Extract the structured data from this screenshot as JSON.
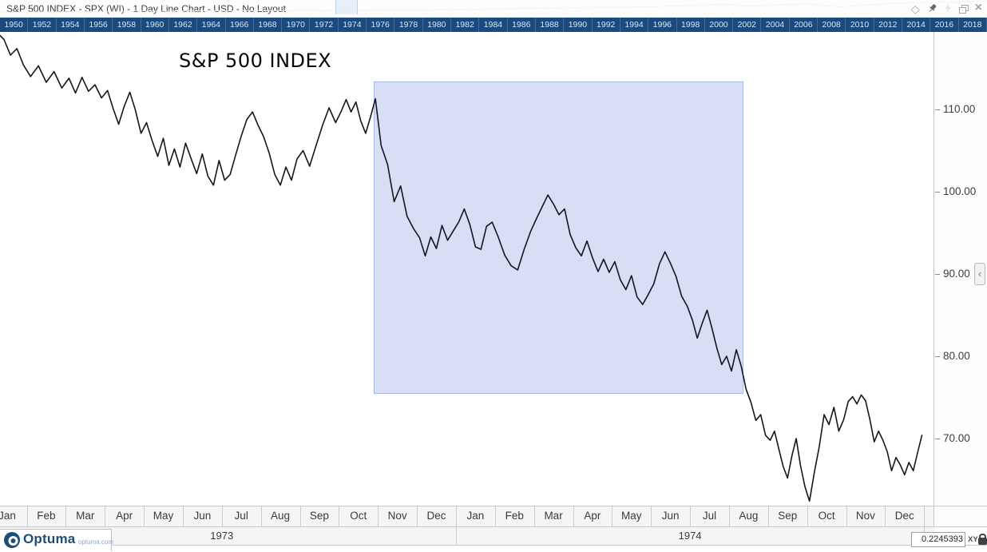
{
  "window": {
    "title": "S&P 500 INDEX - SPX (WI) - 1 Day Line Chart - USD - No Layout",
    "icons": [
      "diamond",
      "pin",
      "flash",
      "restore",
      "close"
    ]
  },
  "timeline": {
    "years": [
      "1950",
      "1952",
      "1954",
      "1956",
      "1958",
      "1960",
      "1962",
      "1964",
      "1966",
      "1968",
      "1970",
      "1972",
      "1974",
      "1976",
      "1978",
      "1980",
      "1982",
      "1984",
      "1986",
      "1988",
      "1990",
      "1992",
      "1994",
      "1996",
      "1998",
      "2000",
      "2002",
      "2004",
      "2006",
      "2008",
      "2010",
      "2012",
      "2014",
      "2016",
      "2018"
    ],
    "viewport": {
      "left_frac": 0.34,
      "width_frac": 0.0226
    },
    "sparkline": [
      [
        0.0,
        0.88
      ],
      [
        0.06,
        0.86
      ],
      [
        0.1,
        0.84
      ],
      [
        0.14,
        0.8
      ],
      [
        0.17,
        0.82
      ],
      [
        0.2,
        0.78
      ],
      [
        0.23,
        0.8
      ],
      [
        0.26,
        0.76
      ],
      [
        0.29,
        0.78
      ],
      [
        0.31,
        0.74
      ],
      [
        0.33,
        0.77
      ],
      [
        0.35,
        0.73
      ],
      [
        0.37,
        0.76
      ],
      [
        0.4,
        0.72
      ],
      [
        0.43,
        0.74
      ],
      [
        0.46,
        0.68
      ],
      [
        0.49,
        0.66
      ],
      [
        0.51,
        0.62
      ],
      [
        0.54,
        0.6
      ],
      [
        0.57,
        0.56
      ],
      [
        0.6,
        0.52
      ],
      [
        0.63,
        0.5
      ],
      [
        0.66,
        0.46
      ],
      [
        0.69,
        0.4
      ],
      [
        0.71,
        0.36
      ],
      [
        0.72,
        0.3
      ],
      [
        0.735,
        0.26
      ],
      [
        0.75,
        0.36
      ],
      [
        0.76,
        0.44
      ],
      [
        0.78,
        0.36
      ],
      [
        0.8,
        0.28
      ],
      [
        0.82,
        0.24
      ],
      [
        0.84,
        0.42
      ],
      [
        0.855,
        0.46
      ],
      [
        0.87,
        0.36
      ],
      [
        0.89,
        0.26
      ],
      [
        0.91,
        0.18
      ],
      [
        0.93,
        0.14
      ],
      [
        0.95,
        0.1
      ],
      [
        0.97,
        0.12
      ],
      [
        0.985,
        0.06
      ],
      [
        1.0,
        0.04
      ]
    ]
  },
  "chart": {
    "title": "S&P 500 INDEX"
  },
  "y_axis": {
    "tick_values": [
      110,
      100,
      90,
      80,
      70
    ]
  },
  "x_axis": {
    "months": [
      "Jan",
      "Feb",
      "Mar",
      "Apr",
      "May",
      "Jun",
      "Jul",
      "Aug",
      "Sep",
      "Oct",
      "Nov",
      "Dec"
    ],
    "years": [
      "1973",
      "1974"
    ]
  },
  "footer": {
    "brand": "Optuma",
    "brand_url": "optuma.com",
    "status_value": "0.2245393",
    "axis_mode": "XY"
  },
  "colors": {
    "timeline_bg": "#1b4a7e",
    "selection_fill": "#d7def5",
    "selection_border": "#a9b9e6",
    "price_line": "#16161e"
  },
  "chart_data": {
    "type": "line",
    "title": "S&P 500 INDEX",
    "symbol": "SPX (WI)",
    "timeframe": "1 Day",
    "currency": "USD",
    "x_range": [
      "Jan 1973",
      "Dec 1974"
    ],
    "y_visible_range": [
      61.5,
      120
    ],
    "y_ticks": [
      110,
      100,
      90,
      80,
      70
    ],
    "highlight_region": {
      "start": "Nov 1973",
      "end": "mid Aug 1974"
    },
    "series": [
      {
        "name": "S&P 500 INDEX",
        "monthly": [
          {
            "month": "Jan 1973",
            "values": [
              118.6,
              119.3,
              118.5,
              116.6,
              117.4,
              115.4
            ]
          },
          {
            "month": "Feb 1973",
            "values": [
              114.0,
              115.3,
              113.3,
              114.6,
              112.6
            ]
          },
          {
            "month": "Mar 1973",
            "values": [
              113.8,
              112.0,
              113.9,
              112.2,
              113.0,
              111.4
            ]
          },
          {
            "month": "Apr 1973",
            "values": [
              112.3,
              110.1,
              108.2,
              110.4,
              112.1,
              109.9,
              107.1
            ]
          },
          {
            "month": "May 1973",
            "values": [
              108.4,
              106.2,
              104.3,
              106.5,
              103.2,
              105.2,
              103.0
            ]
          },
          {
            "month": "Jun 1973",
            "values": [
              105.9,
              104.0,
              102.2,
              104.6,
              101.9,
              100.8,
              103.8
            ]
          },
          {
            "month": "Jul 1973",
            "values": [
              101.4,
              102.1,
              104.5,
              106.8,
              108.8,
              109.7,
              108.1
            ]
          },
          {
            "month": "Aug 1973",
            "values": [
              106.7,
              104.7,
              102.1,
              100.8,
              103.0,
              101.4,
              104.0
            ]
          },
          {
            "month": "Sep 1973",
            "values": [
              105.0,
              103.1,
              105.6,
              108.1,
              110.2,
              108.4
            ]
          },
          {
            "month": "Oct 1973",
            "values": [
              109.8,
              111.2,
              109.7,
              110.9,
              108.6,
              107.1,
              109.1,
              111.3
            ]
          },
          {
            "month": "Nov 1973",
            "values": [
              105.6,
              103.3,
              98.8,
              100.7,
              97.0,
              95.5
            ]
          },
          {
            "month": "Dec 1973",
            "values": [
              94.4,
              92.2,
              94.5,
              93.1,
              95.9,
              94.1,
              95.2
            ]
          },
          {
            "month": "Jan 1974",
            "values": [
              96.3,
              97.9,
              96.0,
              93.3,
              93.0,
              95.8,
              96.3
            ]
          },
          {
            "month": "Feb 1974",
            "values": [
              94.5,
              92.3,
              91.0,
              90.5,
              93.0,
              95.2
            ]
          },
          {
            "month": "Mar 1974",
            "values": [
              96.8,
              98.2,
              99.6,
              98.5,
              97.2,
              97.9,
              94.8
            ]
          },
          {
            "month": "Apr 1974",
            "values": [
              93.2,
              92.2,
              94.0,
              92.0,
              90.3,
              91.8,
              90.2
            ]
          },
          {
            "month": "May 1974",
            "values": [
              91.5,
              89.3,
              88.1,
              89.8,
              87.2,
              86.3,
              87.5
            ]
          },
          {
            "month": "Jun 1974",
            "values": [
              88.8,
              91.2,
              92.7,
              91.3,
              89.7,
              87.3,
              86.1
            ]
          },
          {
            "month": "Jul 1974",
            "values": [
              84.4,
              82.2,
              84.0,
              85.6,
              83.4,
              81.0,
              79.0,
              80.0
            ]
          },
          {
            "month": "Aug 1974",
            "values": [
              78.2,
              80.8,
              78.8,
              76.0,
              74.4,
              72.2,
              72.9,
              70.4
            ]
          },
          {
            "month": "Sep 1974",
            "values": [
              69.8,
              70.9,
              68.7,
              66.6,
              65.2,
              67.9,
              70.0,
              66.7,
              64.2
            ]
          },
          {
            "month": "Oct 1974",
            "values": [
              62.4,
              65.9,
              69.0,
              72.9,
              71.7,
              73.8,
              70.9,
              72.3
            ]
          },
          {
            "month": "Nov 1974",
            "values": [
              74.5,
              75.1,
              74.2,
              75.3,
              74.6,
              72.3,
              69.6,
              70.9,
              69.8
            ]
          },
          {
            "month": "Dec 1974",
            "values": [
              68.4,
              66.1,
              67.7,
              66.8,
              65.6,
              67.1,
              66.1,
              68.3,
              70.4
            ]
          }
        ]
      }
    ]
  }
}
